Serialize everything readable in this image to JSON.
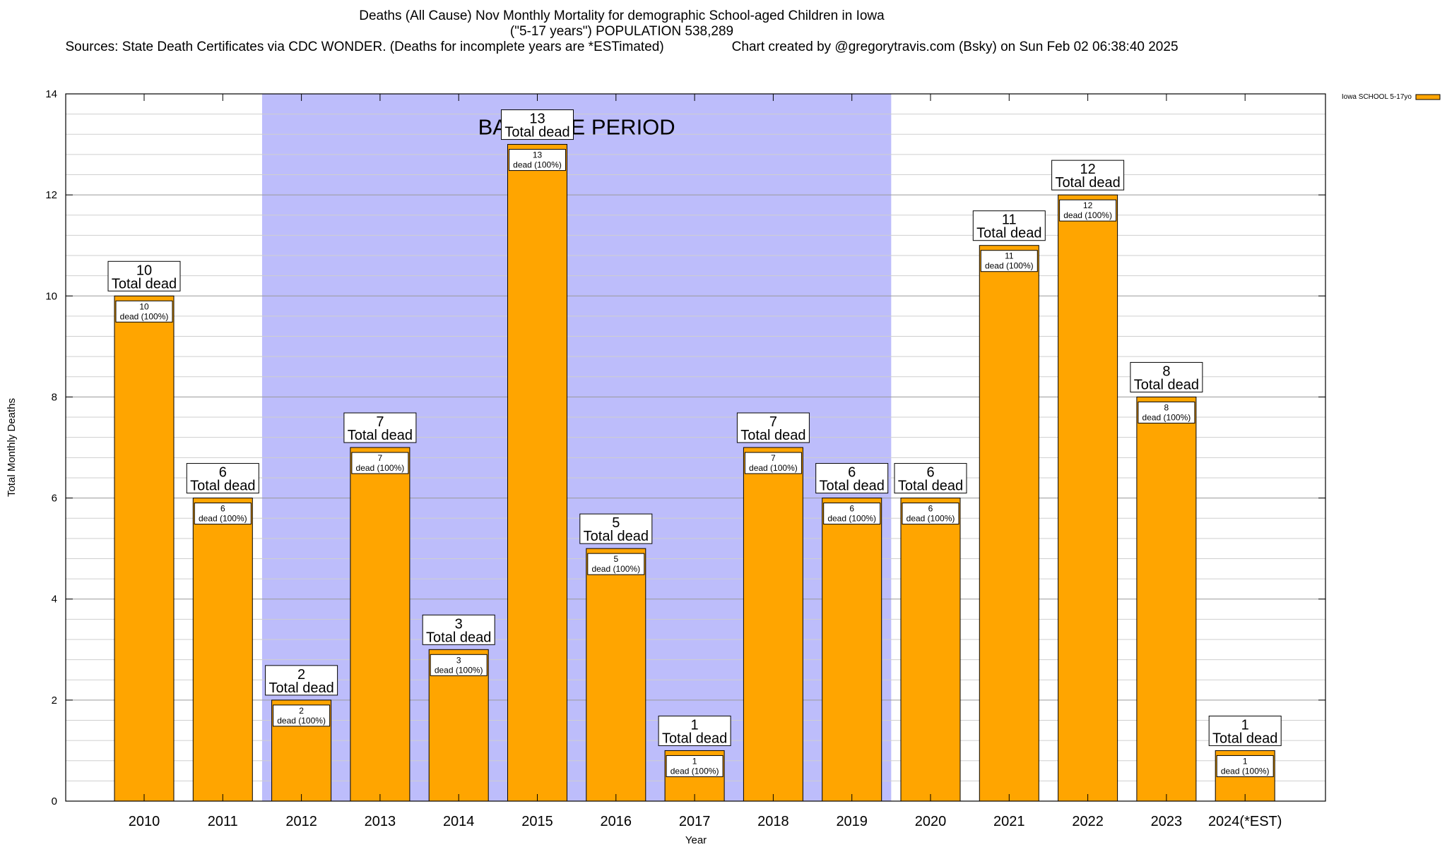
{
  "chart_data": {
    "type": "bar",
    "title": "Deaths (All Cause) Nov Monthly Mortality for demographic School-aged Children in Iowa",
    "subtitle": "(\"5-17 years\") POPULATION 538,289",
    "source": "Sources: State Death Certificates via CDC WONDER. (Deaths for incomplete years are *ESTimated)",
    "credit": "Chart created by @gregorytravis.com (Bsky) on Sun Feb 02 06:38:40 2025",
    "xlabel": "Year",
    "ylabel": "Total Monthly Deaths",
    "ylim": [
      0,
      14
    ],
    "yticks": [
      "0",
      "2",
      "4",
      "6",
      "8",
      "10",
      "12",
      "14"
    ],
    "categories": [
      "2010",
      "2011",
      "2012",
      "2013",
      "2014",
      "2015",
      "2016",
      "2017",
      "2018",
      "2019",
      "2020",
      "2021",
      "2022",
      "2023",
      "2024(*EST)"
    ],
    "series": [
      {
        "name": "Iowa SCHOOL 5-17yo",
        "color": "#ffa500",
        "values": [
          10,
          6,
          2,
          7,
          3,
          13,
          5,
          1,
          7,
          6,
          6,
          11,
          12,
          8,
          1
        ]
      }
    ],
    "baseline": {
      "label": "BASELINE PERIOD",
      "start": "2012",
      "end": "2019",
      "color": "#bdbdfb"
    },
    "top_label_suffix": "Total dead",
    "inner_label_suffix": "dead (100%)",
    "legend": {
      "placement": "top-right",
      "label": "Iowa SCHOOL 5-17yo"
    },
    "grid": true
  }
}
